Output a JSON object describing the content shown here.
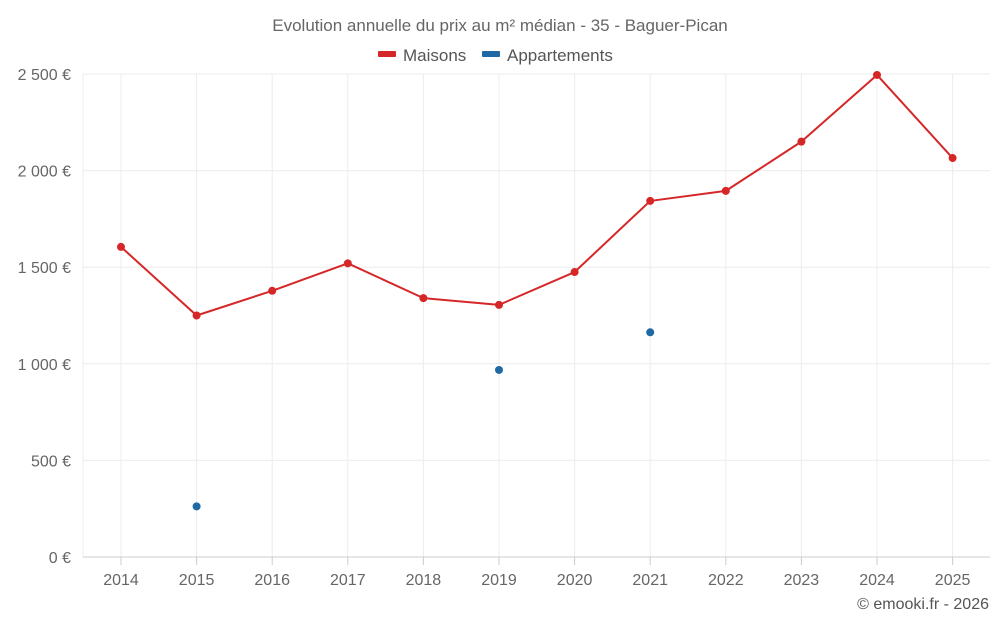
{
  "chart_data": {
    "type": "line",
    "title": "Evolution annuelle du prix au m² médian - 35 - Baguer-Pican",
    "categories": [
      "2014",
      "2015",
      "2016",
      "2017",
      "2018",
      "2019",
      "2020",
      "2021",
      "2022",
      "2023",
      "2024",
      "2025"
    ],
    "ylim": [
      0,
      2500
    ],
    "yticks": [
      0,
      500,
      1000,
      1500,
      2000,
      2500
    ],
    "ytick_labels": [
      "0 €",
      "500 €",
      "1 000 €",
      "1 500 €",
      "2 000 €",
      "2 500 €"
    ],
    "grid": true,
    "legend_position": "top-center",
    "series": [
      {
        "name": "Maisons",
        "color": "#d62728",
        "mode": "lines+markers",
        "values": [
          1605,
          1250,
          1378,
          1520,
          1340,
          1305,
          1475,
          1843,
          1895,
          2150,
          2495,
          2065
        ]
      },
      {
        "name": "Appartements",
        "color": "#1f6aa5",
        "mode": "markers",
        "values": [
          null,
          262,
          null,
          null,
          null,
          968,
          null,
          1163,
          null,
          null,
          null,
          null
        ]
      }
    ]
  },
  "credit": "© emooki.fr - 2026"
}
